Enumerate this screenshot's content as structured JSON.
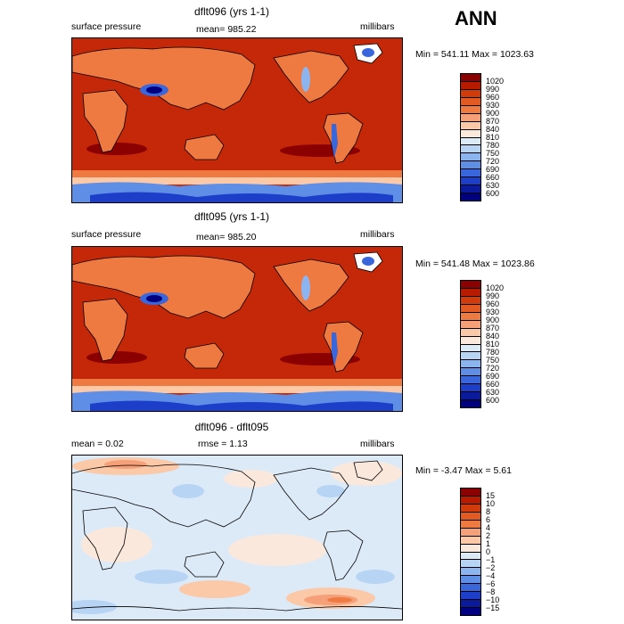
{
  "season": "ANN",
  "panels": [
    {
      "title": "dflt096 (yrs 1-1)",
      "left_label": "surface pressure",
      "mid_label": "mean= 985.22",
      "units": "millibars",
      "minmax": "Min = 541.11 Max = 1023.63",
      "legend": [
        "1020",
        "990",
        "960",
        "930",
        "900",
        "870",
        "840",
        "810",
        "780",
        "750",
        "720",
        "690",
        "660",
        "630",
        "600"
      ],
      "colors": [
        "#8b0000",
        "#b81a00",
        "#d13a0a",
        "#e25a22",
        "#ee7a42",
        "#f5a078",
        "#fbc8a8",
        "#fbe8dc",
        "#dceaf8",
        "#b8d4f4",
        "#8cb4ee",
        "#5f8ee6",
        "#3a66dc",
        "#1c3ec8",
        "#0a1a9a",
        "#000080"
      ]
    },
    {
      "title": "dflt095 (yrs 1-1)",
      "left_label": "surface pressure",
      "mid_label": "mean= 985.20",
      "units": "millibars",
      "minmax": "Min = 541.48 Max = 1023.86",
      "legend": [
        "1020",
        "990",
        "960",
        "930",
        "900",
        "870",
        "840",
        "810",
        "780",
        "750",
        "720",
        "690",
        "660",
        "630",
        "600"
      ],
      "colors": [
        "#8b0000",
        "#b81a00",
        "#d13a0a",
        "#e25a22",
        "#ee7a42",
        "#f5a078",
        "#fbc8a8",
        "#fbe8dc",
        "#dceaf8",
        "#b8d4f4",
        "#8cb4ee",
        "#5f8ee6",
        "#3a66dc",
        "#1c3ec8",
        "#0a1a9a",
        "#000080"
      ]
    },
    {
      "title": "dflt096 - dflt095",
      "left_label": "mean =    0.02",
      "mid_label": "rmse =    1.13",
      "units": "millibars",
      "minmax": "Min =  -3.47 Max =   5.61",
      "legend": [
        "15",
        "10",
        "8",
        "6",
        "4",
        "2",
        "1",
        "0",
        "−1",
        "−2",
        "−4",
        "−6",
        "−8",
        "−10",
        "−15"
      ],
      "colors": [
        "#8b0000",
        "#b81a00",
        "#d13a0a",
        "#e25a22",
        "#ee7a42",
        "#f5a078",
        "#fbc8a8",
        "#fbe8dc",
        "#dceaf8",
        "#b8d4f4",
        "#8cb4ee",
        "#5f8ee6",
        "#3a66dc",
        "#1c3ec8",
        "#0a1a9a",
        "#000080"
      ]
    }
  ]
}
